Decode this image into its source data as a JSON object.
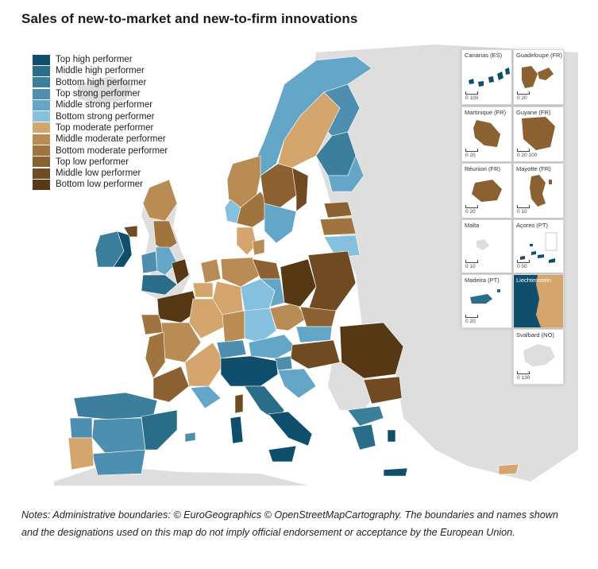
{
  "title": "Sales of new-to-market and new-to-firm innovations",
  "legend": [
    {
      "label": "Top high performer",
      "color": "#0f4f6b"
    },
    {
      "label": "Middle high performer",
      "color": "#2a6d89"
    },
    {
      "label": "Bottom high performer",
      "color": "#3c7f9d"
    },
    {
      "label": "Top strong performer",
      "color": "#4e8fb0"
    },
    {
      "label": "Middle strong performer",
      "color": "#64a6c8"
    },
    {
      "label": "Bottom strong performer",
      "color": "#86c0df"
    },
    {
      "label": "Top moderate performer",
      "color": "#d4a56c"
    },
    {
      "label": "Middle moderate performer",
      "color": "#b98b55"
    },
    {
      "label": "Bottom moderate performer",
      "color": "#a0743f"
    },
    {
      "label": "Top low performer",
      "color": "#8b6131"
    },
    {
      "label": "Middle low performer",
      "color": "#6f4a22"
    },
    {
      "label": "Bottom low performer",
      "color": "#573815"
    }
  ],
  "insets": [
    {
      "label": "Canarias (ES)",
      "scale": "0  100"
    },
    {
      "label": "Guadeloupe (FR)",
      "scale": "0  20"
    },
    {
      "label": "Martinique (FR)",
      "scale": "0  20"
    },
    {
      "label": "Guyane (FR)",
      "scale": "0  20  100"
    },
    {
      "label": "Réunion (FR)",
      "scale": "0  20"
    },
    {
      "label": "Mayotte (FR)",
      "scale": "0  10"
    },
    {
      "label": "Malta",
      "scale": "0  10"
    },
    {
      "label": "Açores (PT)",
      "scale": "0  50"
    },
    {
      "label": "Madeira (PT)",
      "scale": "0  20"
    },
    {
      "label": "Liechtenstein",
      "scale": ""
    },
    {
      "label": "Svalbard (NO)",
      "scale": "0  130"
    }
  ],
  "notes": "Notes: Administrative boundaries: © EuroGeographics © OpenStreetMapCartography. The boundaries and names shown and the designations used on this map do not imply official endorsement or acceptance by the European Union.",
  "colors": {
    "non_eu_land": "#dedede",
    "sea": "#ffffff",
    "border": "#ffffff"
  }
}
